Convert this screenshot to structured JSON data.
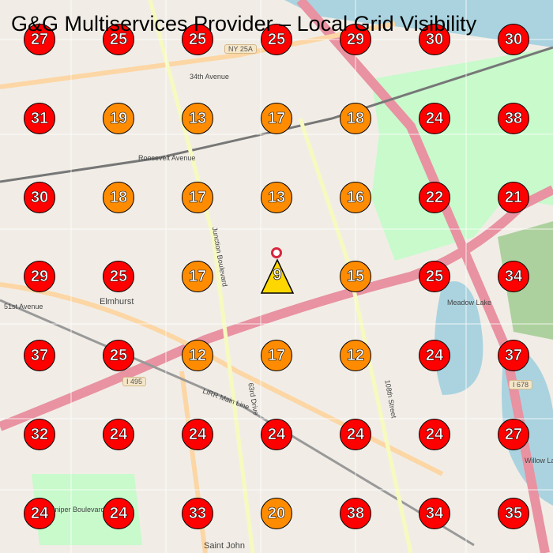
{
  "title": "G&G Multiservices Provider – Local Grid Visibility",
  "colors": {
    "high_rank": "#ff0000",
    "mid_rank": "#ff8c00",
    "top_rank": "#ffd700",
    "pin": "#d7263d"
  },
  "map_labels": [
    "NY 25A",
    "34th Avenue",
    "Roosevelt Avenue",
    "Junction Boulevard",
    "Elmhurst",
    "51st Avenue",
    "I 495",
    "LIRR Main Line",
    "63rd Drive",
    "108th Street",
    "Meadow Lake",
    "Willow Lake",
    "I 678",
    "Juniper Boulevard",
    "Saint John"
  ],
  "grid": [
    [
      27,
      25,
      25,
      25,
      29,
      30,
      30
    ],
    [
      31,
      19,
      13,
      17,
      18,
      24,
      38
    ],
    [
      30,
      18,
      17,
      13,
      16,
      22,
      21
    ],
    [
      29,
      25,
      17,
      9,
      15,
      25,
      34
    ],
    [
      37,
      25,
      12,
      17,
      12,
      24,
      37
    ],
    [
      32,
      24,
      24,
      24,
      24,
      24,
      27
    ],
    [
      24,
      24,
      33,
      20,
      38,
      34,
      35
    ]
  ],
  "center_rank": "9"
}
